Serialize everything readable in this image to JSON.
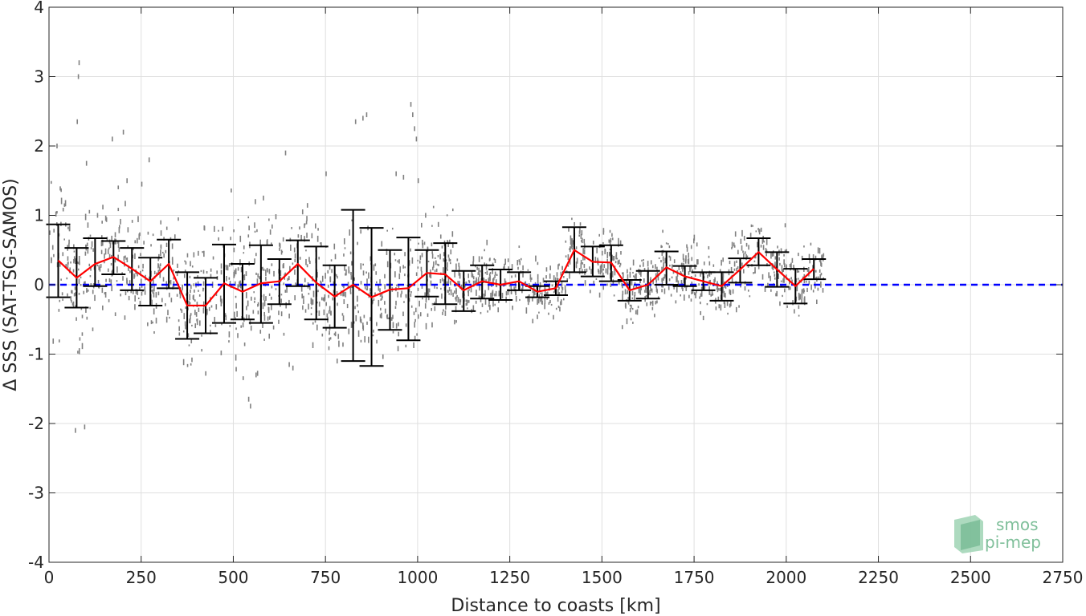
{
  "chart_data": {
    "type": "scatter",
    "title": "",
    "xlabel": "Distance to coasts [km]",
    "ylabel": "Δ SSS (SAT-TSG-SAMOS)",
    "xlim": [
      0,
      2750
    ],
    "ylim": [
      -4,
      4
    ],
    "xticks": [
      0,
      250,
      500,
      750,
      1000,
      1250,
      1500,
      1750,
      2000,
      2250,
      2500,
      2750
    ],
    "xtick_labels": [
      "0",
      "250",
      "500",
      "750",
      "1000",
      "1250",
      "1500",
      "1750",
      "2000",
      "2250",
      "2500",
      "2750"
    ],
    "yticks": [
      -4,
      -3,
      -2,
      -1,
      0,
      1,
      2,
      3,
      4
    ],
    "ytick_labels": [
      "-4",
      "-3",
      "-2",
      "-1",
      "0",
      "1",
      "2",
      "3",
      "4"
    ],
    "grid": true,
    "zero_line": {
      "y": 0,
      "style": "dashed",
      "color": "#0000ff"
    },
    "series": [
      {
        "kind": "binned-mean-with-errorbars",
        "line_color": "#ff0000",
        "errorbar_color": "#000000",
        "x": [
          25,
          75,
          125,
          175,
          225,
          275,
          325,
          375,
          425,
          475,
          525,
          575,
          625,
          675,
          725,
          775,
          825,
          875,
          925,
          975,
          1025,
          1075,
          1125,
          1175,
          1225,
          1275,
          1325,
          1375,
          1425,
          1475,
          1525,
          1575,
          1625,
          1675,
          1725,
          1775,
          1825,
          1875,
          1925,
          1975,
          2025,
          2075
        ],
        "mean": [
          0.35,
          0.1,
          0.3,
          0.4,
          0.23,
          0.05,
          0.3,
          -0.3,
          -0.3,
          0.02,
          -0.1,
          0.02,
          0.05,
          0.3,
          0.03,
          -0.17,
          0.0,
          -0.18,
          -0.07,
          -0.05,
          0.17,
          0.15,
          -0.08,
          0.05,
          0.0,
          0.05,
          -0.1,
          -0.05,
          0.5,
          0.33,
          0.32,
          -0.08,
          0.0,
          0.25,
          0.12,
          0.05,
          -0.02,
          0.22,
          0.47,
          0.22,
          -0.02,
          0.23
        ],
        "lower": [
          -0.18,
          -0.33,
          -0.02,
          0.15,
          -0.08,
          -0.3,
          -0.05,
          -0.78,
          -0.7,
          -0.55,
          -0.5,
          -0.55,
          -0.28,
          -0.02,
          -0.5,
          -0.62,
          -1.1,
          -1.17,
          -0.65,
          -0.8,
          -0.17,
          -0.28,
          -0.38,
          -0.2,
          -0.22,
          -0.08,
          -0.18,
          -0.15,
          0.18,
          0.12,
          0.05,
          -0.23,
          -0.2,
          0.0,
          -0.02,
          -0.08,
          -0.23,
          0.03,
          0.28,
          -0.03,
          -0.27,
          0.08
        ],
        "upper": [
          0.87,
          0.53,
          0.67,
          0.63,
          0.53,
          0.39,
          0.65,
          0.18,
          0.1,
          0.58,
          0.3,
          0.57,
          0.37,
          0.64,
          0.55,
          0.28,
          1.08,
          0.82,
          0.5,
          0.68,
          0.5,
          0.6,
          0.2,
          0.28,
          0.22,
          0.18,
          -0.02,
          0.05,
          0.83,
          0.55,
          0.57,
          0.07,
          0.2,
          0.48,
          0.27,
          0.18,
          0.18,
          0.38,
          0.67,
          0.47,
          0.23,
          0.37
        ]
      },
      {
        "kind": "raw-points",
        "color": "#808080",
        "note_ranges": [
          {
            "x": [
              0,
              100
            ],
            "y": [
              -1.0,
              1.3
            ]
          },
          {
            "x": [
              100,
              400
            ],
            "y": [
              -0.8,
              0.9
            ]
          },
          {
            "x": [
              400,
              600
            ],
            "y": [
              -1.3,
              1.0
            ]
          },
          {
            "x": [
              600,
              1100
            ],
            "y": [
              -0.8,
              0.9
            ]
          },
          {
            "x": [
              1100,
              1400
            ],
            "y": [
              -0.4,
              0.5
            ]
          },
          {
            "x": [
              1400,
              2100
            ],
            "y": [
              -0.4,
              0.6
            ]
          }
        ],
        "outliers": [
          [
            80,
            3.2
          ],
          [
            78,
            3.0
          ],
          [
            75,
            2.35
          ],
          [
            20,
            2.0
          ],
          [
            100,
            1.75
          ],
          [
            130,
            1.0
          ],
          [
            170,
            2.1
          ],
          [
            200,
            2.2
          ],
          [
            210,
            1.5
          ],
          [
            270,
            1.8
          ],
          [
            250,
            1.45
          ],
          [
            95,
            -2.05
          ],
          [
            70,
            -2.1
          ],
          [
            540,
            -1.65
          ],
          [
            545,
            -1.75
          ],
          [
            560,
            -1.3
          ],
          [
            640,
            1.9
          ],
          [
            580,
            1.25
          ],
          [
            750,
            1.6
          ],
          [
            780,
            -1.1
          ],
          [
            830,
            2.35
          ],
          [
            850,
            2.4
          ],
          [
            860,
            2.45
          ],
          [
            940,
            1.6
          ],
          [
            980,
            2.6
          ],
          [
            985,
            2.45
          ],
          [
            990,
            2.25
          ],
          [
            995,
            2.1
          ],
          [
            960,
            1.55
          ],
          [
            1000,
            1.5
          ],
          [
            650,
            -1.15
          ],
          [
            660,
            -1.2
          ],
          [
            1020,
            1.0
          ]
        ]
      }
    ]
  },
  "logo": {
    "line1": "smos",
    "line2": "pi-mep"
  },
  "colors": {
    "grid": "#dfdfdf",
    "axis": "#262626",
    "mean_line": "#ff0000",
    "zero_line": "#0000ff",
    "errorbar": "#000000",
    "points": "#808080",
    "logo": "#7fbf9a"
  }
}
